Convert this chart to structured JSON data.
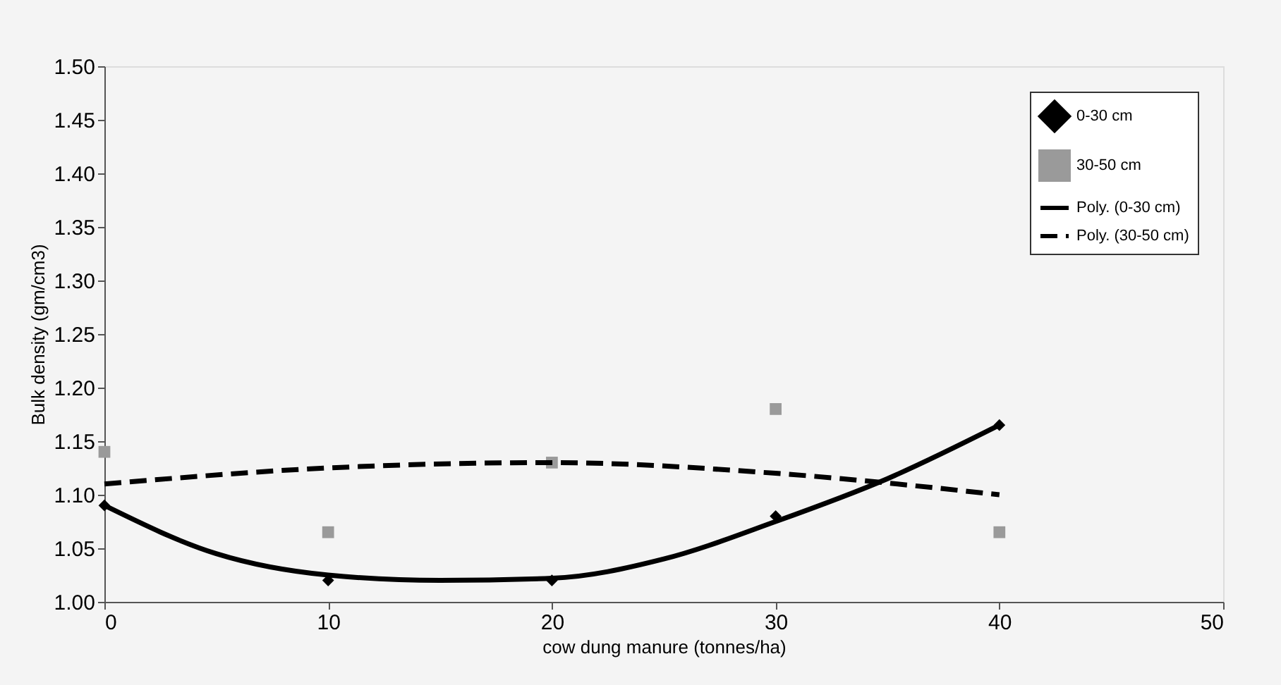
{
  "chart_data": {
    "type": "scatter",
    "xlabel": "cow dung manure (tonnes/ha)",
    "ylabel": "Bulk density (gm/cm3)",
    "xlim": [
      0,
      50
    ],
    "xticks": [
      0,
      10,
      20,
      30,
      40,
      50
    ],
    "ylim": [
      1.0,
      1.5
    ],
    "yticks": [
      {
        "value": 1.0,
        "label": "1.00"
      },
      {
        "value": 1.05,
        "label": "1.05"
      },
      {
        "value": 1.1,
        "label": "1.10"
      },
      {
        "value": 1.15,
        "label": "1.15"
      },
      {
        "value": 1.2,
        "label": "1.20"
      },
      {
        "value": 1.25,
        "label": "1.25"
      },
      {
        "value": 1.3,
        "label": "1.30"
      },
      {
        "value": 1.35,
        "label": "1.35"
      },
      {
        "value": 1.4,
        "label": "1.40"
      },
      {
        "value": 1.45,
        "label": "1.45"
      },
      {
        "value": 1.5,
        "label": "1.50"
      }
    ],
    "grid": false,
    "legend": "top right",
    "series": [
      {
        "name": "0-30 cm",
        "type": "scatter",
        "marker": "diamond",
        "color": "#000000",
        "x": [
          0,
          10,
          20,
          30,
          40
        ],
        "values": [
          1.09,
          1.02,
          1.02,
          1.08,
          1.165
        ]
      },
      {
        "name": "30-50 cm",
        "type": "scatter",
        "marker": "square",
        "color": "#9a9a9a",
        "x": [
          0,
          10,
          20,
          30,
          40
        ],
        "values": [
          1.14,
          1.065,
          1.13,
          1.18,
          1.065
        ]
      },
      {
        "name": "Poly. (0-30 cm)",
        "type": "line",
        "line_style": "solid",
        "color": "#000000",
        "x": [
          0,
          5,
          10,
          15,
          20,
          25,
          30,
          35,
          40
        ],
        "values": [
          1.09,
          1.045,
          1.025,
          1.02,
          1.022,
          1.04,
          1.075,
          1.115,
          1.165
        ]
      },
      {
        "name": "Poly. (30-50 cm)",
        "type": "line",
        "line_style": "dashed",
        "color": "#000000",
        "x": [
          0,
          10,
          20,
          30,
          40
        ],
        "values": [
          1.11,
          1.125,
          1.13,
          1.12,
          1.1
        ]
      }
    ]
  }
}
